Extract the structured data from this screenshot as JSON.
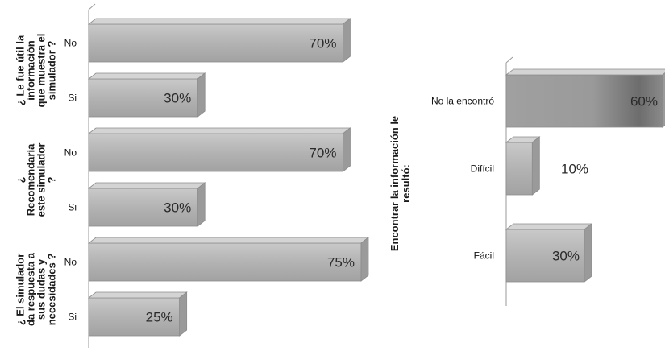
{
  "chart_data": [
    {
      "type": "bar",
      "orientation": "horizontal",
      "groups": [
        {
          "label_lines": [
            "¿ Le fue útil la",
            "información",
            "que muestra el",
            "simulador ?"
          ],
          "bars": [
            {
              "category": "No",
              "value": 70,
              "label": "70%"
            },
            {
              "category": "Si",
              "value": 30,
              "label": "30%"
            }
          ]
        },
        {
          "label_lines": [
            "¿",
            "Recomendaría",
            "este simulador",
            "?"
          ],
          "bars": [
            {
              "category": "No",
              "value": 70,
              "label": "70%"
            },
            {
              "category": "Si",
              "value": 30,
              "label": "30%"
            }
          ]
        },
        {
          "label_lines": [
            "¿ El simulador",
            "da respuesta a",
            "sus dudas y",
            "necesidades ?"
          ],
          "bars": [
            {
              "category": "No",
              "value": 75,
              "label": "75%"
            },
            {
              "category": "Si",
              "value": 25,
              "label": "25%"
            }
          ]
        }
      ],
      "xlim": [
        0,
        75
      ],
      "grid": false,
      "bar_color": "#b9b9b9"
    },
    {
      "type": "bar",
      "orientation": "horizontal",
      "title_lines": [
        "Encontrar la información le",
        "resultó:"
      ],
      "categories": [
        "No la encontró",
        "Difícil",
        "Fácil"
      ],
      "values": [
        60,
        10,
        30
      ],
      "value_labels": [
        "60%",
        "10%",
        "30%"
      ],
      "xlim": [
        0,
        60
      ],
      "grid": false,
      "bar_color": "#a9a9a9"
    }
  ]
}
